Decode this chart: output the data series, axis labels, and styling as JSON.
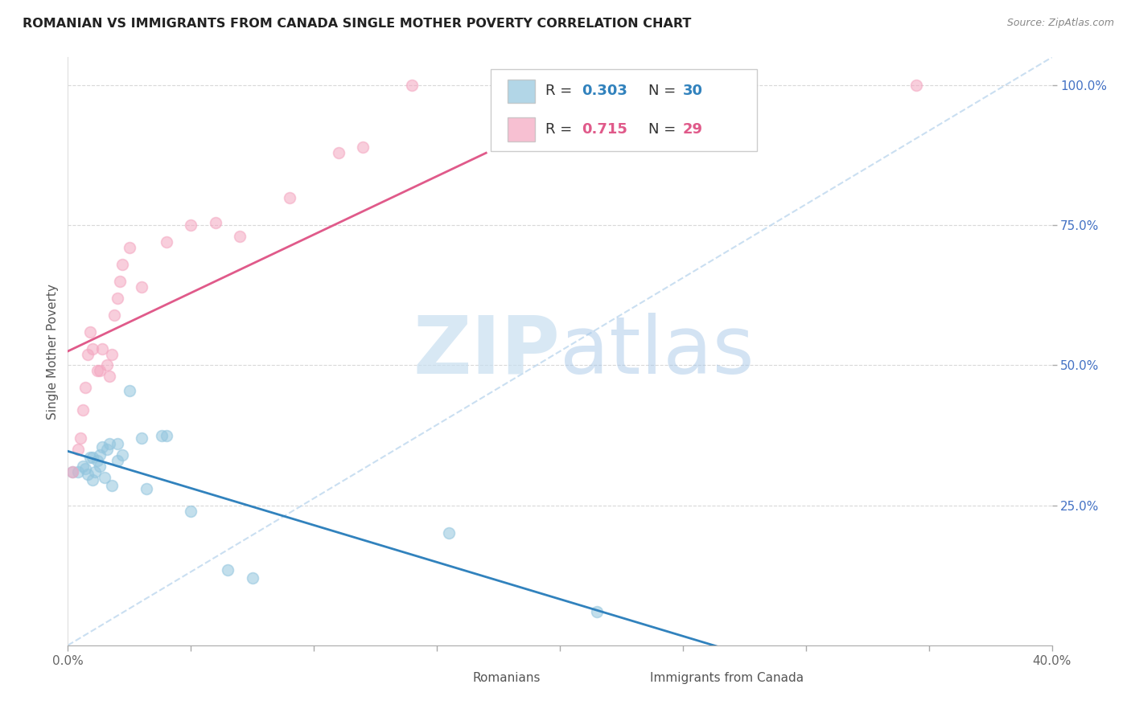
{
  "title": "ROMANIAN VS IMMIGRANTS FROM CANADA SINGLE MOTHER POVERTY CORRELATION CHART",
  "source": "Source: ZipAtlas.com",
  "ylabel": "Single Mother Poverty",
  "xmin": 0.0,
  "xmax": 0.4,
  "ymin": 0.0,
  "ymax": 1.05,
  "blue_color": "#92c5de",
  "pink_color": "#f4a6c0",
  "blue_line_color": "#3182bd",
  "pink_line_color": "#e05a8a",
  "dashed_line_color": "#bdd7ee",
  "legend_r_blue": "0.303",
  "legend_n_blue": "30",
  "legend_r_pink": "0.715",
  "legend_n_pink": "29",
  "watermark_zip": "ZIP",
  "watermark_atlas": "atlas",
  "romanians_x": [
    0.002,
    0.004,
    0.006,
    0.007,
    0.008,
    0.009,
    0.01,
    0.01,
    0.011,
    0.012,
    0.013,
    0.013,
    0.014,
    0.015,
    0.016,
    0.017,
    0.018,
    0.02,
    0.02,
    0.022,
    0.025,
    0.03,
    0.032,
    0.038,
    0.04,
    0.05,
    0.065,
    0.075,
    0.155,
    0.215
  ],
  "romanians_y": [
    0.31,
    0.31,
    0.32,
    0.315,
    0.305,
    0.335,
    0.335,
    0.295,
    0.31,
    0.33,
    0.32,
    0.34,
    0.355,
    0.3,
    0.35,
    0.36,
    0.285,
    0.36,
    0.33,
    0.34,
    0.455,
    0.37,
    0.28,
    0.375,
    0.375,
    0.24,
    0.135,
    0.12,
    0.2,
    0.06
  ],
  "canada_x": [
    0.002,
    0.004,
    0.005,
    0.006,
    0.007,
    0.008,
    0.009,
    0.01,
    0.012,
    0.013,
    0.014,
    0.016,
    0.017,
    0.018,
    0.019,
    0.02,
    0.021,
    0.022,
    0.025,
    0.03,
    0.04,
    0.05,
    0.06,
    0.07,
    0.09,
    0.11,
    0.12,
    0.14,
    0.345
  ],
  "canada_y": [
    0.31,
    0.35,
    0.37,
    0.42,
    0.46,
    0.52,
    0.56,
    0.53,
    0.49,
    0.49,
    0.53,
    0.5,
    0.48,
    0.52,
    0.59,
    0.62,
    0.65,
    0.68,
    0.71,
    0.64,
    0.72,
    0.75,
    0.755,
    0.73,
    0.8,
    0.88,
    0.89,
    1.0,
    1.0
  ],
  "blue_marker_size": 100,
  "pink_marker_size": 100
}
